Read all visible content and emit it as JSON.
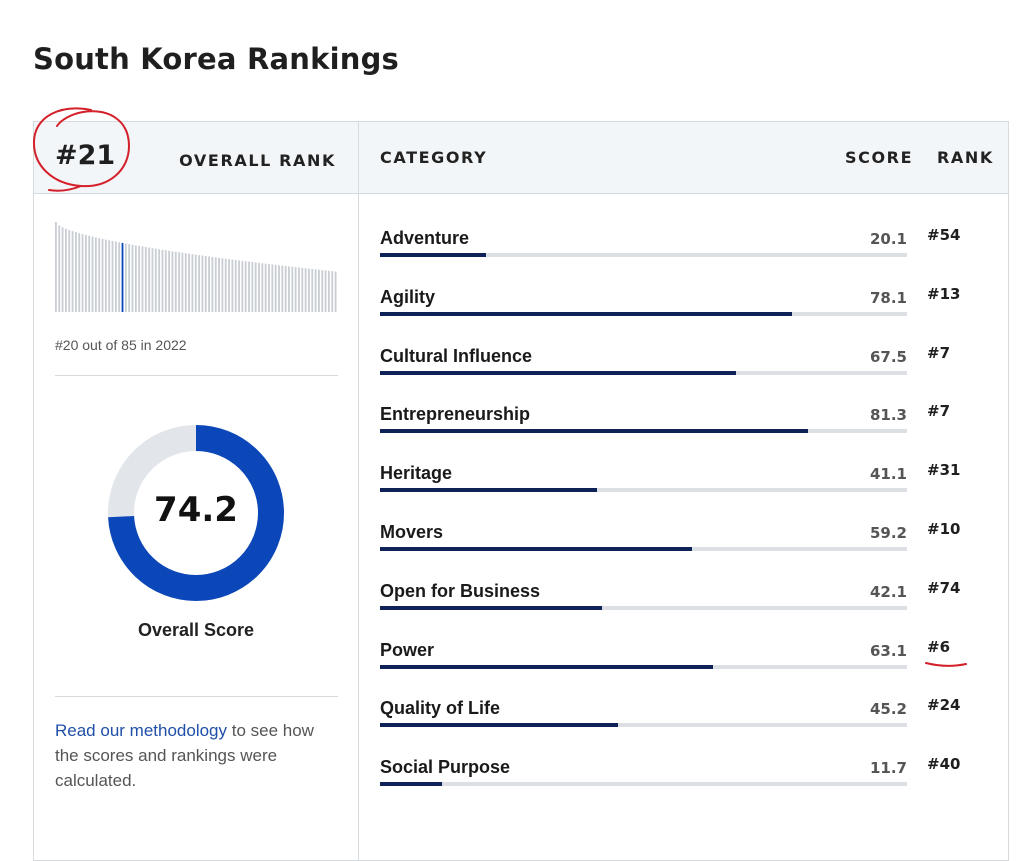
{
  "page": {
    "title": "South Korea Rankings"
  },
  "overall": {
    "rank": "#21",
    "rank_label": "OVERALL RANK",
    "previous_text": "#20 out of 85 in 2022",
    "score": "74.2",
    "score_fraction": 0.742,
    "score_label": "Overall Score"
  },
  "methodology": {
    "link_text": "Read our methodology",
    "rest_text": " to see how the scores and rankings were calculated."
  },
  "table": {
    "headers": {
      "category": "CATEGORY",
      "score": "SCORE",
      "rank": "RANK"
    },
    "rows": [
      {
        "name": "Adventure",
        "score": "20.1",
        "rank": "#54"
      },
      {
        "name": "Agility",
        "score": "78.1",
        "rank": "#13"
      },
      {
        "name": "Cultural Influence",
        "score": "67.5",
        "rank": "#7"
      },
      {
        "name": "Entrepreneurship",
        "score": "81.3",
        "rank": "#7"
      },
      {
        "name": "Heritage",
        "score": "41.1",
        "rank": "#31"
      },
      {
        "name": "Movers",
        "score": "59.2",
        "rank": "#10"
      },
      {
        "name": "Open for Business",
        "score": "42.1",
        "rank": "#74"
      },
      {
        "name": "Power",
        "score": "63.1",
        "rank": "#6"
      },
      {
        "name": "Quality of Life",
        "score": "45.2",
        "rank": "#24"
      },
      {
        "name": "Social Purpose",
        "score": "11.7",
        "rank": "#40"
      }
    ]
  },
  "colors": {
    "accent": "#0b47b8",
    "bar_fill": "#0f2257",
    "highlight_bar": "#0b47b8",
    "annotation_red": "#d4202a"
  },
  "sparkline": {
    "total": 85,
    "highlight_rank": 21
  }
}
